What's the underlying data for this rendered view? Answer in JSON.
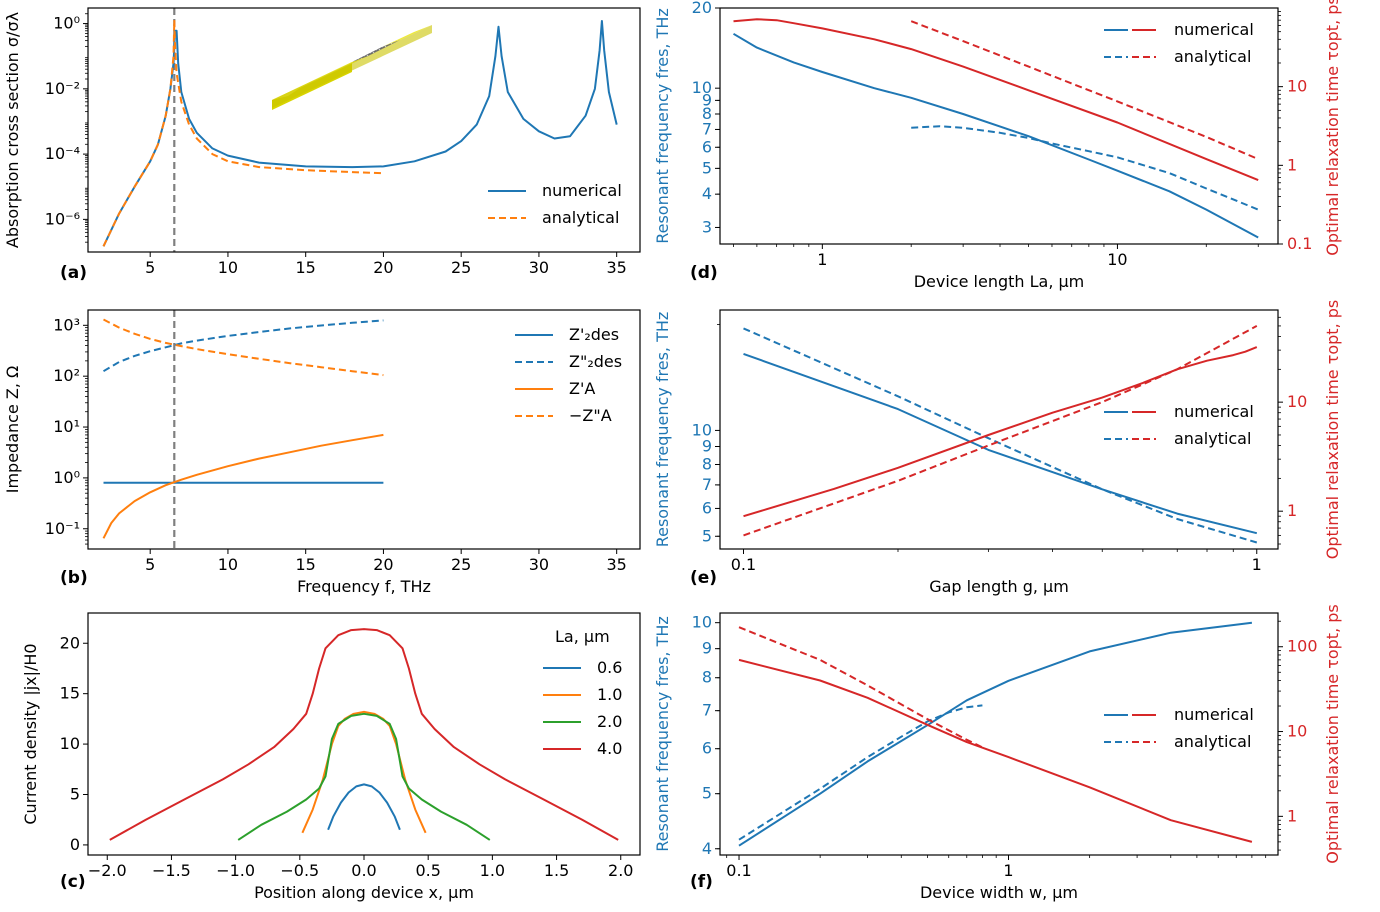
{
  "colors": {
    "blue": "#1f77b4",
    "orange": "#ff7f0e",
    "green": "#2ca02c",
    "red": "#d62728",
    "gray": "#7f7f7f"
  },
  "chart_data": [
    {
      "panel": "(a)",
      "type": "line",
      "xlabel": "",
      "ylabel": "Absorption cross section σ/σλ",
      "xscale": "linear",
      "yscale": "log",
      "xlim": [
        1,
        36.5
      ],
      "ylim": [
        1e-07,
        3
      ],
      "xticks": [
        5,
        10,
        15,
        20,
        25,
        30,
        35
      ],
      "yticks": [
        1e-06,
        0.0001,
        0.01,
        1
      ],
      "ytick_labels": [
        "10⁻⁶",
        "10⁻⁴",
        "10⁻²",
        "10⁰"
      ],
      "vline": 6.55,
      "legend": "lower-right",
      "inset": "device illustration",
      "series": [
        {
          "name": "numerical",
          "color": "blue",
          "style": "solid",
          "x": [
            2,
            3,
            4,
            5,
            5.5,
            6,
            6.3,
            6.5,
            6.6,
            6.7,
            6.8,
            7,
            7.5,
            8,
            9,
            10,
            12,
            15,
            18,
            20,
            22,
            24,
            25,
            26,
            26.8,
            27.2,
            27.4,
            27.6,
            28,
            29,
            30,
            31,
            32,
            33,
            33.6,
            33.9,
            34.05,
            34.2,
            34.5,
            35
          ],
          "y": [
            1.5e-07,
            1.5e-06,
            1e-05,
            6e-05,
            0.0002,
            0.0015,
            0.01,
            0.06,
            0.6,
            0.6,
            0.06,
            0.008,
            0.0012,
            0.00045,
            0.00015,
            9e-05,
            5.5e-05,
            4.2e-05,
            4e-05,
            4.2e-05,
            6e-05,
            0.00012,
            0.00025,
            0.0008,
            0.006,
            0.1,
            0.8,
            0.1,
            0.008,
            0.0012,
            0.0005,
            0.0003,
            0.00035,
            0.0015,
            0.01,
            0.15,
            1.2,
            0.15,
            0.008,
            0.0008
          ]
        },
        {
          "name": "analytical",
          "color": "orange",
          "style": "dashed",
          "x": [
            2,
            3,
            4,
            5,
            5.5,
            6,
            6.3,
            6.5,
            6.55,
            6.6,
            6.7,
            7,
            7.5,
            8,
            9,
            10,
            12,
            15,
            18,
            20
          ],
          "y": [
            1.5e-07,
            1.5e-06,
            1e-05,
            6e-05,
            0.0002,
            0.0015,
            0.01,
            0.1,
            1.3,
            0.2,
            0.03,
            0.004,
            0.0008,
            0.0003,
            0.0001,
            6e-05,
            4e-05,
            3.2e-05,
            2.8e-05,
            2.6e-05
          ]
        }
      ]
    },
    {
      "panel": "(b)",
      "type": "line",
      "xlabel": "Frequency f, THz",
      "ylabel": "Impedance Z, Ω",
      "xscale": "linear",
      "yscale": "log",
      "xlim": [
        1,
        36.5
      ],
      "ylim": [
        0.04,
        2000
      ],
      "xticks": [
        5,
        10,
        15,
        20,
        25,
        30,
        35
      ],
      "yticks": [
        0.1,
        1,
        10,
        100,
        1000
      ],
      "ytick_labels": [
        "10⁻¹",
        "10⁰",
        "10¹",
        "10²",
        "10³"
      ],
      "vline": 6.55,
      "legend": "top-right",
      "series": [
        {
          "name": "Z'₂des",
          "color": "blue",
          "style": "solid",
          "x": [
            2,
            5,
            10,
            15,
            20
          ],
          "y": [
            0.8,
            0.8,
            0.8,
            0.8,
            0.8
          ]
        },
        {
          "name": "Z\"₂des",
          "color": "blue",
          "style": "dashed",
          "x": [
            2,
            3,
            4,
            5,
            6,
            7,
            8,
            10,
            12,
            14,
            16,
            18,
            20
          ],
          "y": [
            125,
            190,
            250,
            310,
            370,
            440,
            500,
            620,
            740,
            870,
            990,
            1120,
            1250
          ]
        },
        {
          "name": "Z'A",
          "color": "orange",
          "style": "solid",
          "x": [
            2,
            2.5,
            3,
            4,
            5,
            6,
            7,
            8,
            10,
            12,
            14,
            16,
            18,
            20
          ],
          "y": [
            0.065,
            0.13,
            0.2,
            0.35,
            0.52,
            0.72,
            0.92,
            1.15,
            1.7,
            2.4,
            3.2,
            4.3,
            5.5,
            7
          ]
        },
        {
          "name": "−Z\"A",
          "color": "orange",
          "style": "dashed",
          "x": [
            2,
            3,
            4,
            5,
            6,
            7,
            8,
            10,
            12,
            14,
            16,
            18,
            20
          ],
          "y": [
            1300,
            900,
            680,
            540,
            450,
            390,
            340,
            270,
            220,
            180,
            150,
            125,
            105
          ]
        }
      ]
    },
    {
      "panel": "(c)",
      "type": "line",
      "xlabel": "Position along device x, μm",
      "ylabel": "Current density |jx|/H0",
      "xscale": "linear",
      "yscale": "linear",
      "xlim": [
        -2.15,
        2.15
      ],
      "ylim": [
        -1,
        23
      ],
      "xticks": [
        -2,
        -1.5,
        -1,
        -0.5,
        0,
        0.5,
        1,
        1.5,
        2
      ],
      "xtick_labels": [
        "−2.0",
        "−1.5",
        "−1.0",
        "−0.5",
        "0.0",
        "0.5",
        "1.0",
        "1.5",
        "2.0"
      ],
      "yticks": [
        0,
        5,
        10,
        15,
        20
      ],
      "legend_title": "La, μm",
      "legend": "top-right",
      "series": [
        {
          "name": "0.6",
          "color": "blue",
          "style": "solid",
          "x": [
            -0.28,
            -0.24,
            -0.18,
            -0.12,
            -0.06,
            0,
            0.06,
            0.12,
            0.18,
            0.24,
            0.28
          ],
          "y": [
            1.5,
            2.8,
            4.2,
            5.2,
            5.8,
            6,
            5.8,
            5.2,
            4.2,
            2.8,
            1.5
          ]
        },
        {
          "name": "1.0",
          "color": "orange",
          "style": "solid",
          "x": [
            -0.48,
            -0.4,
            -0.32,
            -0.25,
            -0.2,
            -0.15,
            -0.08,
            0,
            0.08,
            0.15,
            0.2,
            0.25,
            0.32,
            0.4,
            0.48
          ],
          "y": [
            1.2,
            3.5,
            6.5,
            10,
            11.8,
            12.5,
            13,
            13.2,
            13,
            12.5,
            11.8,
            10,
            6.5,
            3.5,
            1.2
          ]
        },
        {
          "name": "2.0",
          "color": "green",
          "style": "solid",
          "x": [
            -0.98,
            -0.8,
            -0.6,
            -0.45,
            -0.35,
            -0.3,
            -0.25,
            -0.2,
            -0.1,
            0,
            0.1,
            0.2,
            0.25,
            0.3,
            0.35,
            0.45,
            0.6,
            0.8,
            0.98
          ],
          "y": [
            0.5,
            2,
            3.3,
            4.5,
            5.6,
            6.8,
            10.5,
            12,
            12.8,
            13,
            12.8,
            12,
            10.5,
            6.8,
            5.6,
            4.5,
            3.3,
            2,
            0.5
          ]
        },
        {
          "name": "4.0",
          "color": "red",
          "style": "solid",
          "x": [
            -1.98,
            -1.7,
            -1.4,
            -1.1,
            -0.9,
            -0.7,
            -0.55,
            -0.45,
            -0.4,
            -0.35,
            -0.3,
            -0.2,
            -0.1,
            0,
            0.1,
            0.2,
            0.3,
            0.35,
            0.4,
            0.45,
            0.55,
            0.7,
            0.9,
            1.1,
            1.4,
            1.7,
            1.98
          ],
          "y": [
            0.5,
            2.5,
            4.5,
            6.5,
            8,
            9.7,
            11.5,
            13,
            15,
            17.5,
            19.5,
            20.8,
            21.3,
            21.4,
            21.3,
            20.8,
            19.5,
            17.5,
            15,
            13,
            11.5,
            9.7,
            8,
            6.5,
            4.5,
            2.5,
            0.5
          ]
        }
      ]
    },
    {
      "panel": "(d)",
      "type": "line",
      "xlabel": "Device length La, μm",
      "ylabel": "Resonant frequency fres, THz",
      "ylabel_right": "Optimal relaxation time τopt, ps",
      "xscale": "log",
      "yscale": "log",
      "yscale_right": "log",
      "xlim": [
        0.45,
        35
      ],
      "ylim": [
        2.6,
        20
      ],
      "ylim_right": [
        0.1,
        100
      ],
      "xticks": [
        1,
        10
      ],
      "yticks": [
        3,
        4,
        5,
        6,
        7,
        8,
        9,
        10,
        20
      ],
      "yticks_right": [
        0.1,
        1,
        10
      ],
      "legend": "top-right",
      "series": [
        {
          "name": "numerical",
          "axis": "left",
          "color": "blue",
          "style": "solid",
          "x": [
            0.5,
            0.6,
            0.8,
            1,
            1.5,
            2,
            3,
            5,
            8,
            10,
            15,
            20,
            30
          ],
          "y": [
            16,
            14.2,
            12.5,
            11.5,
            10,
            9.2,
            8,
            6.6,
            5.4,
            4.9,
            4.1,
            3.5,
            2.75
          ]
        },
        {
          "name": "analytical",
          "axis": "left",
          "color": "blue",
          "style": "dashed",
          "x": [
            2,
            2.5,
            3,
            4,
            5,
            6,
            8,
            10,
            15,
            20,
            30
          ],
          "y": [
            7.1,
            7.2,
            7.1,
            6.8,
            6.5,
            6.2,
            5.8,
            5.5,
            4.8,
            4.2,
            3.5
          ]
        },
        {
          "name": "numerical",
          "axis": "right",
          "color": "red",
          "style": "solid",
          "x": [
            0.5,
            0.6,
            0.7,
            0.8,
            1,
            1.5,
            2,
            3,
            5,
            10,
            20,
            30
          ],
          "y": [
            68,
            72,
            70,
            64,
            55,
            40,
            30,
            18,
            9,
            3.5,
            1.2,
            0.65
          ]
        },
        {
          "name": "analytical",
          "axis": "right",
          "color": "red",
          "style": "dashed",
          "x": [
            2,
            3,
            5,
            10,
            20,
            30
          ],
          "y": [
            68,
            38,
            18,
            6.5,
            2.3,
            1.2
          ]
        }
      ]
    },
    {
      "panel": "(e)",
      "type": "line",
      "xlabel": "Gap length g, μm",
      "ylabel": "Resonant frequency fres, THz",
      "ylabel_right": "Optimal relaxation time τopt, ps",
      "xscale": "log",
      "yscale": "log",
      "yscale_right": "log",
      "xlim": [
        0.09,
        1.1
      ],
      "ylim": [
        4.6,
        22
      ],
      "ylim_right": [
        0.45,
        70
      ],
      "xticks": [
        0.1,
        1
      ],
      "yticks": [
        5,
        6,
        7,
        8,
        9,
        10
      ],
      "yticks_right": [
        1,
        10
      ],
      "legend": "center-right",
      "series": [
        {
          "name": "numerical",
          "axis": "left",
          "color": "blue",
          "style": "solid",
          "x": [
            0.1,
            0.2,
            0.3,
            0.5,
            0.7,
            1
          ],
          "y": [
            16.5,
            11.5,
            8.8,
            6.8,
            5.8,
            5.1
          ]
        },
        {
          "name": "analytical",
          "axis": "left",
          "color": "blue",
          "style": "dashed",
          "x": [
            0.1,
            0.2,
            0.3,
            0.5,
            0.7,
            1
          ],
          "y": [
            19.5,
            12.5,
            9.5,
            6.8,
            5.6,
            4.8
          ]
        },
        {
          "name": "numerical",
          "axis": "right",
          "color": "red",
          "style": "solid",
          "x": [
            0.1,
            0.15,
            0.2,
            0.3,
            0.4,
            0.5,
            0.6,
            0.7,
            0.8,
            0.9,
            0.95,
            1
          ],
          "y": [
            0.9,
            1.6,
            2.5,
            5,
            8,
            11,
            15,
            20,
            24,
            27,
            29,
            32
          ]
        },
        {
          "name": "analytical",
          "axis": "right",
          "color": "red",
          "style": "dashed",
          "x": [
            0.1,
            0.2,
            0.3,
            0.5,
            0.7,
            1
          ],
          "y": [
            0.6,
            1.9,
            4,
            10,
            20,
            50
          ]
        }
      ]
    },
    {
      "panel": "(f)",
      "type": "line",
      "xlabel": "Device width w, μm",
      "ylabel": "Resonant frequency fres, THz",
      "ylabel_right": "Optimal relaxation time τopt, ps",
      "xscale": "log",
      "yscale": "log",
      "yscale_right": "log",
      "xlim": [
        0.085,
        10
      ],
      "ylim": [
        3.9,
        10.4
      ],
      "ylim_right": [
        0.35,
        250
      ],
      "xticks": [
        0.1,
        1
      ],
      "yticks": [
        4,
        5,
        6,
        7,
        8,
        9,
        10
      ],
      "yticks_right": [
        1,
        10,
        100
      ],
      "legend": "center-right",
      "series": [
        {
          "name": "numerical",
          "axis": "left",
          "color": "blue",
          "style": "solid",
          "x": [
            0.1,
            0.2,
            0.3,
            0.5,
            0.7,
            1,
            2,
            4,
            8
          ],
          "y": [
            4.05,
            5,
            5.7,
            6.6,
            7.3,
            7.9,
            8.9,
            9.6,
            10
          ]
        },
        {
          "name": "analytical",
          "axis": "left",
          "color": "blue",
          "style": "dashed",
          "x": [
            0.1,
            0.2,
            0.3,
            0.4,
            0.5,
            0.6,
            0.7,
            0.8
          ],
          "y": [
            4.15,
            5.1,
            5.8,
            6.3,
            6.7,
            6.95,
            7.1,
            7.15
          ]
        },
        {
          "name": "numerical",
          "axis": "right",
          "color": "red",
          "style": "solid",
          "x": [
            0.1,
            0.2,
            0.3,
            0.5,
            0.7,
            1,
            2,
            4,
            8
          ],
          "y": [
            70,
            40,
            25,
            12,
            7.5,
            5,
            2.2,
            0.9,
            0.5
          ]
        },
        {
          "name": "analytical",
          "axis": "right",
          "color": "red",
          "style": "dashed",
          "x": [
            0.1,
            0.2,
            0.3,
            0.5,
            0.7,
            0.8
          ],
          "y": [
            170,
            70,
            35,
            14,
            8,
            6.5
          ]
        }
      ]
    }
  ]
}
